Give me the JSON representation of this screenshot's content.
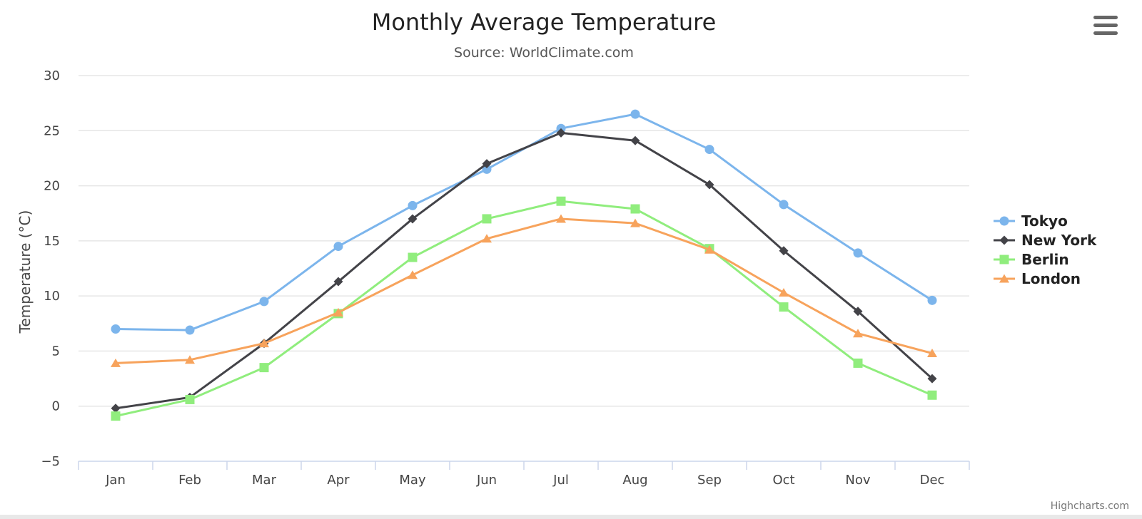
{
  "chart_data": {
    "type": "line",
    "title": "Monthly Average Temperature",
    "subtitle": "Source: WorldClimate.com",
    "ylabel": "Temperature (°C)",
    "xlabel": "",
    "categories": [
      "Jan",
      "Feb",
      "Mar",
      "Apr",
      "May",
      "Jun",
      "Jul",
      "Aug",
      "Sep",
      "Oct",
      "Nov",
      "Dec"
    ],
    "ylim": [
      -5,
      30
    ],
    "yticks": [
      -5,
      0,
      5,
      10,
      15,
      20,
      25,
      30
    ],
    "grid": true,
    "legend": "right",
    "series": [
      {
        "name": "Tokyo",
        "color": "#7cb5ec",
        "marker": "circle",
        "values": [
          7.0,
          6.9,
          9.5,
          14.5,
          18.2,
          21.5,
          25.2,
          26.5,
          23.3,
          18.3,
          13.9,
          9.6
        ]
      },
      {
        "name": "New York",
        "color": "#434348",
        "marker": "diamond",
        "values": [
          -0.2,
          0.8,
          5.7,
          11.3,
          17.0,
          22.0,
          24.8,
          24.1,
          20.1,
          14.1,
          8.6,
          2.5
        ]
      },
      {
        "name": "Berlin",
        "color": "#90ed7d",
        "marker": "square",
        "values": [
          -0.9,
          0.6,
          3.5,
          8.4,
          13.5,
          17.0,
          18.6,
          17.9,
          14.3,
          9.0,
          3.9,
          1.0
        ]
      },
      {
        "name": "London",
        "color": "#f7a35c",
        "marker": "triangle",
        "values": [
          3.9,
          4.2,
          5.7,
          8.5,
          11.9,
          15.2,
          17.0,
          16.6,
          14.2,
          10.3,
          6.6,
          4.8
        ]
      }
    ]
  },
  "credits": "Highcharts.com",
  "menu_icon": "hamburger-menu-icon"
}
